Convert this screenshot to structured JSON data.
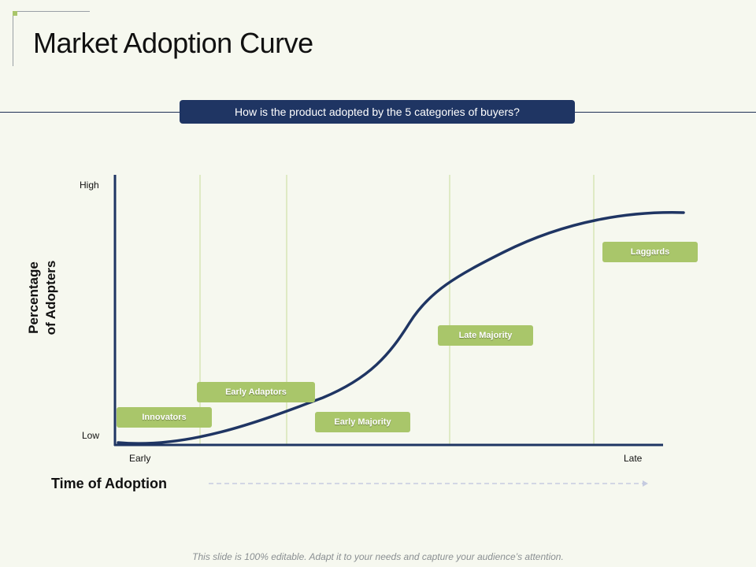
{
  "slide": {
    "title": "Market Adoption Curve",
    "question": "How is the product adopted by the 5 categories of buyers?",
    "footer": "This slide is 100% editable. Adapt it to your needs and capture your audience’s attention."
  },
  "chart": {
    "y_axis_title": "Percentage of Adopters",
    "y_high_label": "High",
    "y_low_label": "Low",
    "x_axis_title": "Time of Adoption",
    "x_early_label": "Early",
    "x_late_label": "Late",
    "categories": [
      {
        "label": "Innovators"
      },
      {
        "label": "Early Adaptors"
      },
      {
        "label": "Early Majority"
      },
      {
        "label": "Late Majority"
      },
      {
        "label": "Laggards"
      }
    ]
  },
  "colors": {
    "curve": "#1f3563",
    "category_box": "#a9c66a",
    "banner": "#1f3563",
    "divider_lines": "#c8dc9a"
  }
}
